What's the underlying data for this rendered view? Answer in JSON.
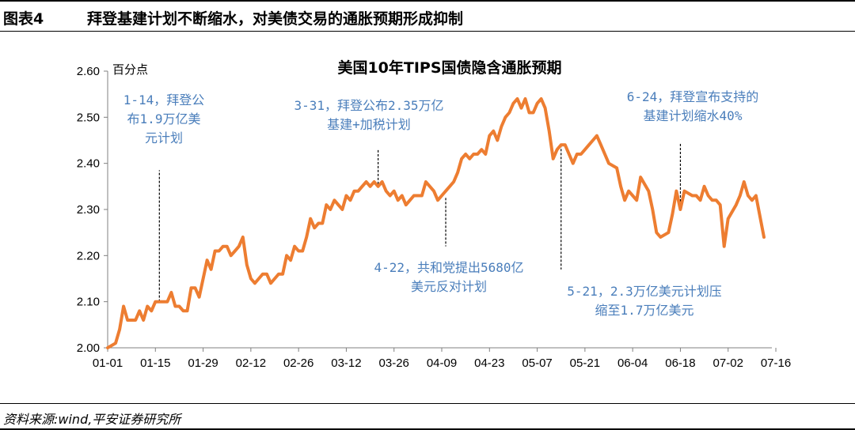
{
  "header": {
    "figure_label": "图表4",
    "title": "拜登基建计划不断缩水，对美债交易的通胀预期形成抑制"
  },
  "footer": {
    "source": "资料来源:wind,平安证券研究所"
  },
  "chart_data": {
    "type": "line",
    "title": "美国10年TIPS国债隐含通胀预期",
    "ylabel": "百分点",
    "xlabel": "",
    "ylim": [
      2.0,
      2.6
    ],
    "yticks": [
      "2.00",
      "2.10",
      "2.20",
      "2.30",
      "2.40",
      "2.50",
      "2.60"
    ],
    "xticks": [
      "01-01",
      "01-15",
      "01-29",
      "02-12",
      "02-26",
      "03-12",
      "03-26",
      "04-09",
      "04-23",
      "05-07",
      "05-21",
      "06-04",
      "06-18",
      "07-02",
      "07-16"
    ],
    "line_color": "#ed7d31",
    "series": [
      {
        "name": "",
        "points": [
          [
            0,
            2.0
          ],
          [
            2,
            2.01
          ],
          [
            3,
            2.04
          ],
          [
            4,
            2.09
          ],
          [
            5,
            2.06
          ],
          [
            7,
            2.06
          ],
          [
            8,
            2.08
          ],
          [
            9,
            2.06
          ],
          [
            10,
            2.09
          ],
          [
            11,
            2.08
          ],
          [
            12,
            2.1
          ],
          [
            15,
            2.1
          ],
          [
            16,
            2.12
          ],
          [
            17,
            2.09
          ],
          [
            18,
            2.09
          ],
          [
            19,
            2.08
          ],
          [
            20,
            2.08
          ],
          [
            21,
            2.13
          ],
          [
            22,
            2.13
          ],
          [
            23,
            2.11
          ],
          [
            25,
            2.19
          ],
          [
            26,
            2.17
          ],
          [
            27,
            2.21
          ],
          [
            28,
            2.21
          ],
          [
            29,
            2.22
          ],
          [
            30,
            2.22
          ],
          [
            31,
            2.2
          ],
          [
            32,
            2.21
          ],
          [
            33,
            2.22
          ],
          [
            34,
            2.24
          ],
          [
            35,
            2.18
          ],
          [
            36,
            2.15
          ],
          [
            37,
            2.14
          ],
          [
            38,
            2.15
          ],
          [
            39,
            2.16
          ],
          [
            40,
            2.16
          ],
          [
            41,
            2.14
          ],
          [
            42,
            2.15
          ],
          [
            43,
            2.16
          ],
          [
            44,
            2.16
          ],
          [
            45,
            2.2
          ],
          [
            46,
            2.19
          ],
          [
            47,
            2.22
          ],
          [
            48,
            2.21
          ],
          [
            49,
            2.21
          ],
          [
            50,
            2.24
          ],
          [
            51,
            2.28
          ],
          [
            52,
            2.26
          ],
          [
            53,
            2.27
          ],
          [
            54,
            2.27
          ],
          [
            55,
            2.31
          ],
          [
            56,
            2.3
          ],
          [
            57,
            2.32
          ],
          [
            58,
            2.31
          ],
          [
            59,
            2.3
          ],
          [
            60,
            2.33
          ],
          [
            61,
            2.32
          ],
          [
            62,
            2.34
          ],
          [
            63,
            2.34
          ],
          [
            64,
            2.35
          ],
          [
            65,
            2.36
          ],
          [
            66,
            2.35
          ],
          [
            67,
            2.36
          ],
          [
            68,
            2.35
          ],
          [
            69,
            2.36
          ],
          [
            70,
            2.34
          ],
          [
            71,
            2.33
          ],
          [
            72,
            2.34
          ],
          [
            73,
            2.32
          ],
          [
            74,
            2.33
          ],
          [
            75,
            2.31
          ],
          [
            76,
            2.32
          ],
          [
            77,
            2.33
          ],
          [
            78,
            2.33
          ],
          [
            79,
            2.33
          ],
          [
            80,
            2.36
          ],
          [
            81,
            2.35
          ],
          [
            82,
            2.34
          ],
          [
            83,
            2.32
          ],
          [
            84,
            2.33
          ],
          [
            85,
            2.34
          ],
          [
            86,
            2.35
          ],
          [
            87,
            2.36
          ],
          [
            88,
            2.38
          ],
          [
            89,
            2.41
          ],
          [
            90,
            2.42
          ],
          [
            91,
            2.41
          ],
          [
            92,
            2.42
          ],
          [
            93,
            2.42
          ],
          [
            94,
            2.43
          ],
          [
            95,
            2.42
          ],
          [
            96,
            2.46
          ],
          [
            97,
            2.47
          ],
          [
            98,
            2.45
          ],
          [
            99,
            2.48
          ],
          [
            100,
            2.5
          ],
          [
            101,
            2.51
          ],
          [
            102,
            2.53
          ],
          [
            103,
            2.54
          ],
          [
            104,
            2.52
          ],
          [
            105,
            2.54
          ],
          [
            106,
            2.51
          ],
          [
            107,
            2.51
          ],
          [
            108,
            2.53
          ],
          [
            109,
            2.54
          ],
          [
            110,
            2.52
          ],
          [
            111,
            2.47
          ],
          [
            112,
            2.41
          ],
          [
            113,
            2.43
          ],
          [
            114,
            2.44
          ],
          [
            115,
            2.44
          ],
          [
            116,
            2.42
          ],
          [
            117,
            2.4
          ],
          [
            118,
            2.42
          ],
          [
            119,
            2.42
          ],
          [
            120,
            2.43
          ],
          [
            121,
            2.44
          ],
          [
            122,
            2.45
          ],
          [
            123,
            2.46
          ],
          [
            124,
            2.44
          ],
          [
            125,
            2.42
          ],
          [
            126,
            2.4
          ],
          [
            128,
            2.39
          ],
          [
            129,
            2.35
          ],
          [
            130,
            2.32
          ],
          [
            131,
            2.34
          ],
          [
            132,
            2.33
          ],
          [
            133,
            2.32
          ],
          [
            134,
            2.37
          ],
          [
            136,
            2.34
          ],
          [
            137,
            2.3
          ],
          [
            138,
            2.25
          ],
          [
            139,
            2.24
          ],
          [
            141,
            2.25
          ],
          [
            142,
            2.29
          ],
          [
            143,
            2.34
          ],
          [
            144,
            2.3
          ],
          [
            145,
            2.34
          ],
          [
            147,
            2.33
          ],
          [
            148,
            2.33
          ],
          [
            149,
            2.32
          ],
          [
            150,
            2.35
          ],
          [
            151,
            2.33
          ],
          [
            152,
            2.32
          ],
          [
            153,
            2.32
          ],
          [
            154,
            2.31
          ],
          [
            155,
            2.22
          ],
          [
            156,
            2.28
          ],
          [
            158,
            2.31
          ],
          [
            159,
            2.33
          ],
          [
            160,
            2.36
          ],
          [
            161,
            2.33
          ],
          [
            162,
            2.32
          ],
          [
            163,
            2.33
          ],
          [
            165,
            2.24
          ]
        ]
      }
    ],
    "annotations": [
      {
        "id": "a1",
        "lines": [
          "1-14，拜登公",
          "布1.9万亿美",
          "元计划"
        ],
        "x": 13,
        "y_from": 2.1,
        "y_to": 2.385
      },
      {
        "id": "a2",
        "lines": [
          "3-31，拜登公布2.35万亿",
          "基建+加税计划"
        ],
        "x": 68,
        "y_from": 2.355,
        "y_to": 2.43
      },
      {
        "id": "a3",
        "lines": [
          "4-22，共和党提出5680亿",
          "美元反对计划"
        ],
        "x": 85,
        "y_from": 2.325,
        "y_to": 2.22
      },
      {
        "id": "a4",
        "lines": [
          "5-21，2.3万亿美元计划压",
          "缩至1.7万亿美元"
        ],
        "x": 114,
        "y_from": 2.44,
        "y_to": 2.17
      },
      {
        "id": "a5",
        "lines": [
          "6-24，拜登宣布支持的",
          "基建计划缩水40%"
        ],
        "x": 144,
        "y_from": 2.3,
        "y_to": 2.445
      }
    ]
  }
}
